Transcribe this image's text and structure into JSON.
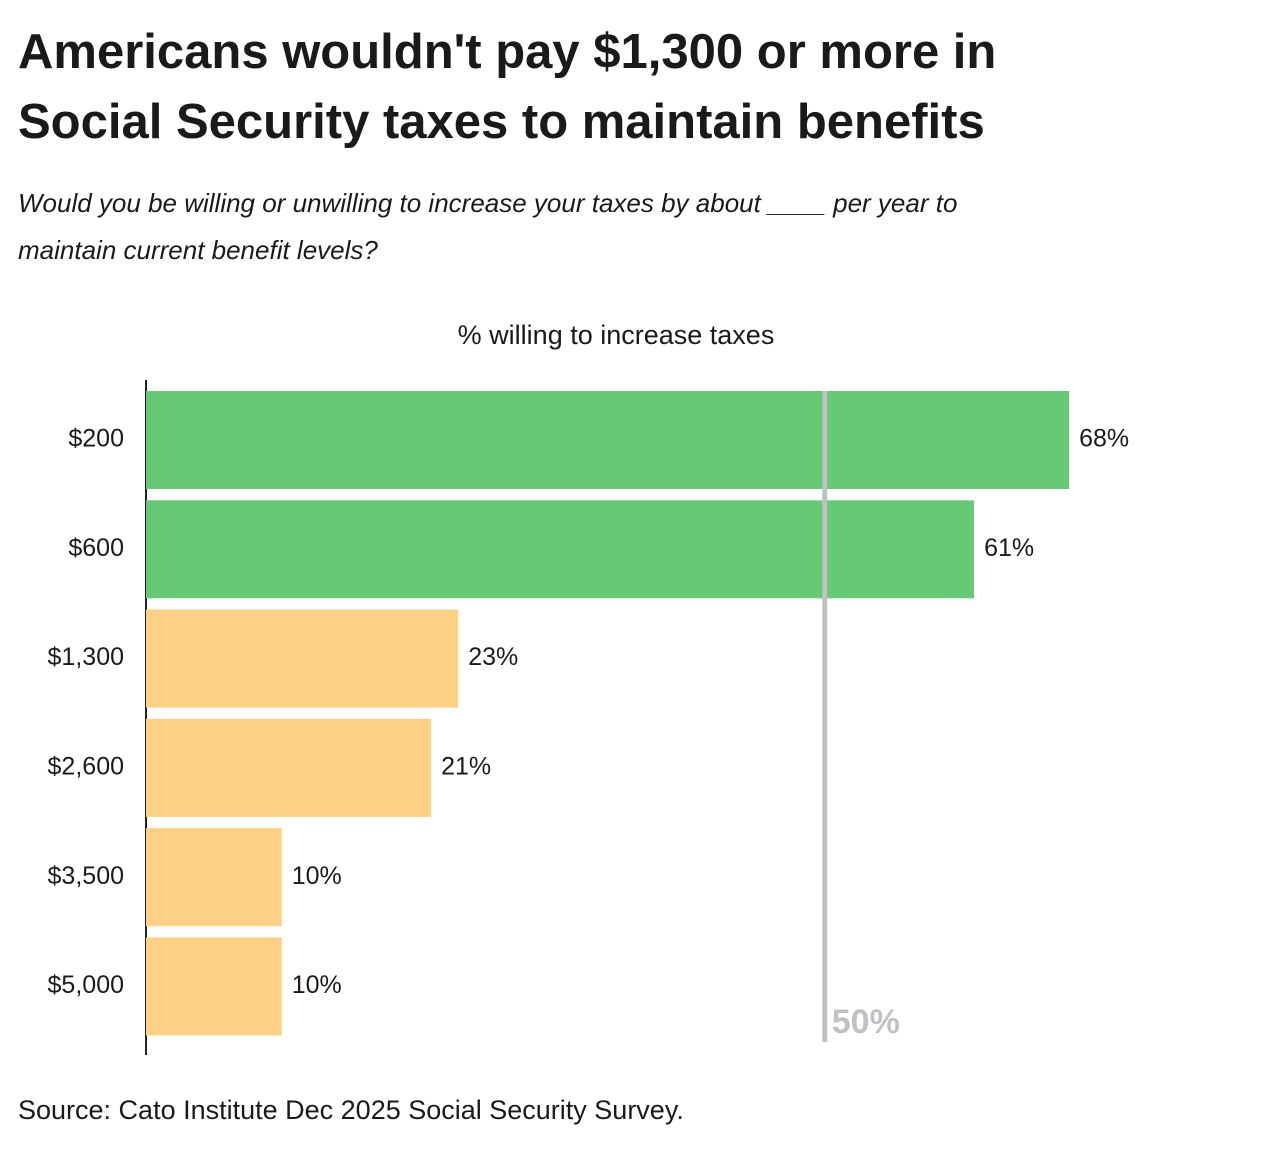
{
  "chart_data": {
    "type": "bar",
    "orientation": "horizontal",
    "title": [
      "Americans wouldn't pay $1,300 or more in",
      "Social Security taxes to maintain benefits"
    ],
    "subtitle": [
      "Would you be willing or unwilling to increase your taxes by about ____ per year to",
      "maintain current benefit levels?"
    ],
    "x_label": "% willing to increase taxes",
    "categories": [
      "$200",
      "$600",
      "$1,300",
      "$2,600",
      "$3,500",
      "$5,000"
    ],
    "values": [
      68,
      61,
      23,
      21,
      10,
      10
    ],
    "value_labels": [
      "68%",
      "61%",
      "23%",
      "21%",
      "10%",
      "10%"
    ],
    "colors": [
      "#66c973",
      "#66c973",
      "#fcd185",
      "#fcd185",
      "#fcd185",
      "#fcd185"
    ],
    "xlim": [
      0,
      80
    ],
    "reference_line": {
      "value": 50,
      "label": "50%",
      "color": "#bfc1c4"
    },
    "source": "Source: Cato Institute Dec 2025 Social Security Survey."
  }
}
